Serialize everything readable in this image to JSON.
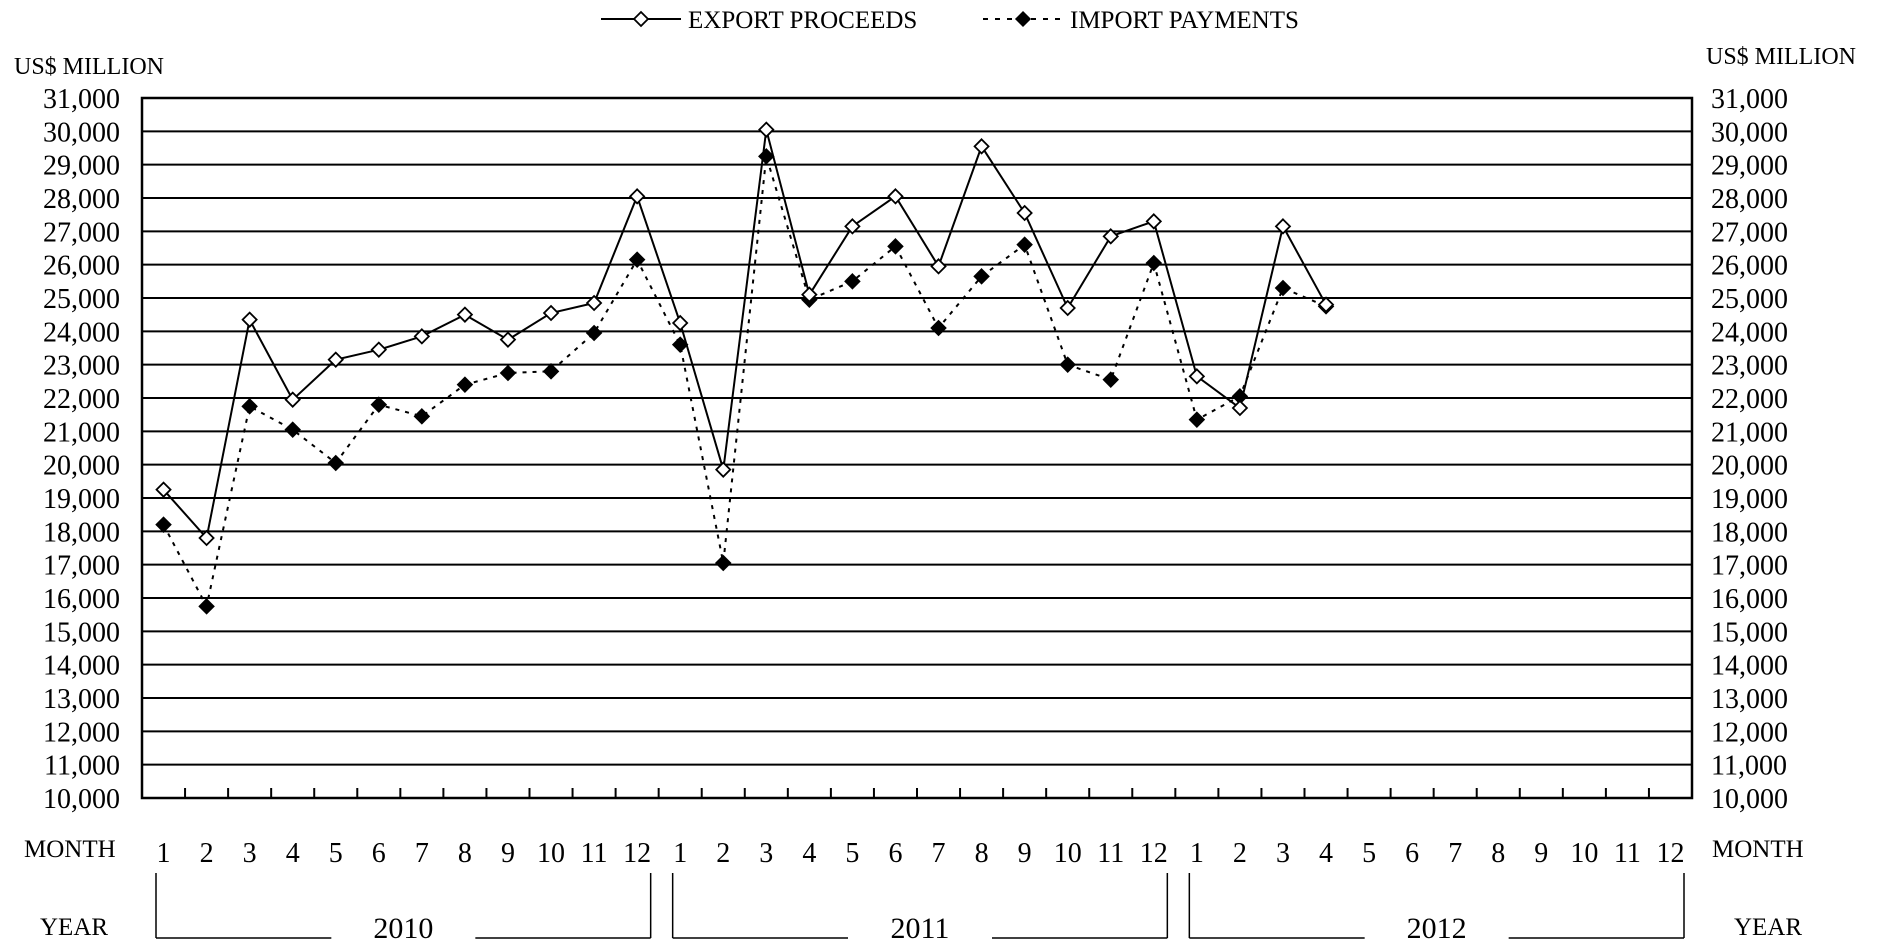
{
  "chart_data": {
    "type": "line",
    "legend": {
      "placement": "top-center",
      "entries": [
        "EXPORT PROCEEDS",
        "IMPORT PAYMENTS"
      ]
    },
    "y_unit_left": "US$ MILLION",
    "y_unit_right": "US$ MILLION",
    "ylim": [
      10000,
      31000
    ],
    "y_tick_step": 1000,
    "y_tick_labels": [
      "10,000",
      "11,000",
      "12,000",
      "13,000",
      "14,000",
      "15,000",
      "16,000",
      "17,000",
      "18,000",
      "19,000",
      "20,000",
      "21,000",
      "22,000",
      "23,000",
      "24,000",
      "25,000",
      "26,000",
      "27,000",
      "28,000",
      "29,000",
      "30,000",
      "31,000"
    ],
    "grid": true,
    "x_row_label_left": "MONTH",
    "x_row_label_right": "MONTH",
    "year_row_label_left": "YEAR",
    "year_row_label_right": "YEAR",
    "years": [
      "2010",
      "2011",
      "2012"
    ],
    "months_per_year": [
      "1",
      "2",
      "3",
      "4",
      "5",
      "6",
      "7",
      "8",
      "9",
      "10",
      "11",
      "12"
    ],
    "series": [
      {
        "name": "EXPORT PROCEEDS",
        "marker": "open-diamond",
        "line": "solid",
        "values": [
          19250,
          17800,
          24350,
          21950,
          23150,
          23450,
          23850,
          24500,
          23750,
          24550,
          24850,
          28050,
          24250,
          19850,
          30050,
          25100,
          27150,
          28050,
          25950,
          29550,
          27550,
          24700,
          26850,
          27300,
          22650,
          21700,
          27150,
          24800
        ]
      },
      {
        "name": "IMPORT PAYMENTS",
        "marker": "filled-diamond",
        "line": "dotted",
        "values": [
          18200,
          15750,
          21750,
          21050,
          20050,
          21800,
          21450,
          22400,
          22750,
          22800,
          23950,
          26150,
          23600,
          17050,
          29250,
          24950,
          25500,
          26550,
          24100,
          25650,
          26600,
          23000,
          22550,
          26050,
          21350,
          22050,
          25300,
          24750
        ]
      }
    ]
  }
}
